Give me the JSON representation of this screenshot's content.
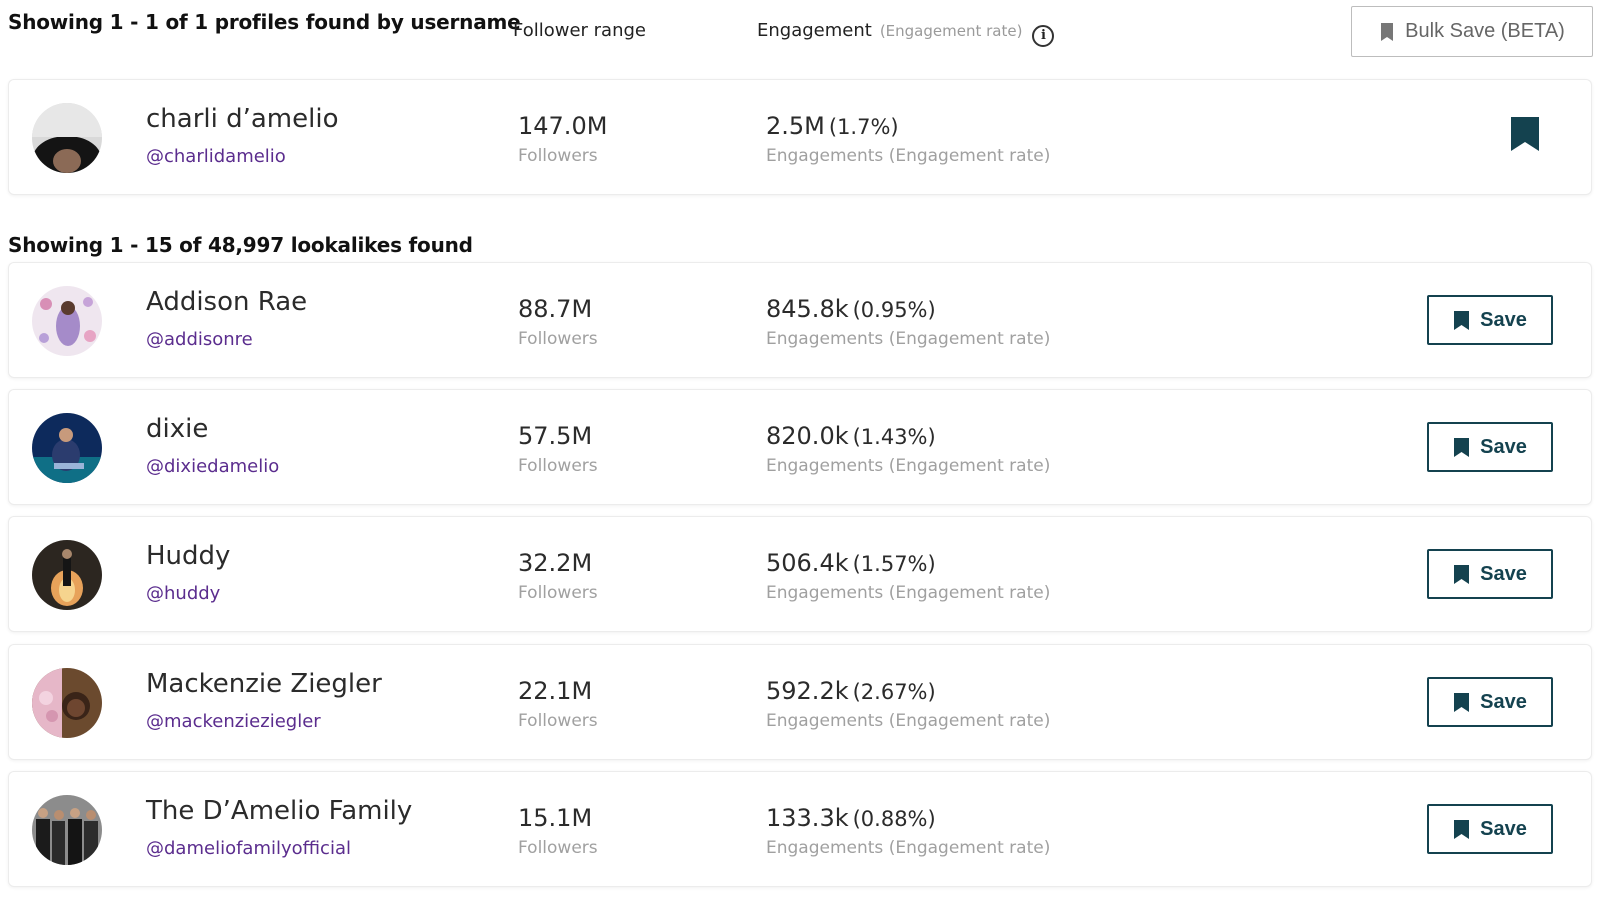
{
  "header": {
    "results_text": "Showing 1 - 1 of 1 profiles found by username",
    "follower_range_label": "Follower range",
    "engagement_label": "Engagement",
    "engagement_sub_label": "(Engagement rate)",
    "info_icon_glyph": "i",
    "bulk_save_label": "Bulk Save (BETA)"
  },
  "main_profile": {
    "name": "charli d’amelio",
    "handle": "@charlidamelio",
    "followers": "147.0M",
    "followers_label": "Followers",
    "engagements": "2.5M",
    "engagement_rate": "(1.7%)",
    "engagement_label": "Engagements (Engagement rate)",
    "saved": true,
    "bookmark_icon": "bookmark-filled-icon"
  },
  "lookalikes": {
    "results_text": "Showing 1 - 15 of 48,997 lookalikes found",
    "save_label": "Save",
    "items": [
      {
        "name": "Addison Rae",
        "handle": "@addisonre",
        "followers": "88.7M",
        "followers_label": "Followers",
        "engagements": "845.8k",
        "engagement_rate": "(0.95%)",
        "engagement_label": "Engagements (Engagement rate)"
      },
      {
        "name": "dixie",
        "handle": "@dixiedamelio",
        "followers": "57.5M",
        "followers_label": "Followers",
        "engagements": "820.0k",
        "engagement_rate": "(1.43%)",
        "engagement_label": "Engagements (Engagement rate)"
      },
      {
        "name": "Huddy",
        "handle": "@huddy",
        "followers": "32.2M",
        "followers_label": "Followers",
        "engagements": "506.4k",
        "engagement_rate": "(1.57%)",
        "engagement_label": "Engagements (Engagement rate)"
      },
      {
        "name": "Mackenzie Ziegler",
        "handle": "@mackenzieziegler",
        "followers": "22.1M",
        "followers_label": "Followers",
        "engagements": "592.2k",
        "engagement_rate": "(2.67%)",
        "engagement_label": "Engagements (Engagement rate)"
      },
      {
        "name": "The D’Amelio Family",
        "handle": "@dameliofamilyofficial",
        "followers": "15.1M",
        "followers_label": "Followers",
        "engagements": "133.3k",
        "engagement_rate": "(0.88%)",
        "engagement_label": "Engagements (Engagement rate)"
      }
    ]
  },
  "colors": {
    "accent_dark_teal": "#14424f",
    "handle_purple": "#5b2d8e",
    "muted_gray": "#a0a0a0"
  }
}
